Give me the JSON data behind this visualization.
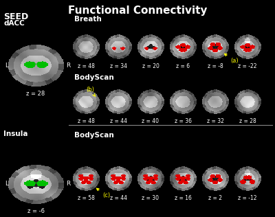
{
  "title": "Functional Connectivity",
  "title_fontsize": 11,
  "bg_color": "#000000",
  "seed_label": "SEED",
  "dacc_label": "dACC",
  "dacc_z_label": "z = 28",
  "insula_label": "Insula",
  "insula_z_label": "z = -6",
  "breath_label": "Breath",
  "bodyscan_label1": "BodyScan",
  "bodyscan_label2": "BodyScan",
  "L_label": "L",
  "R_label": "R",
  "row1_z_labels": [
    "z = 48",
    "z = 34",
    "z = 20",
    "z = 6",
    "z = -8",
    "z = -22"
  ],
  "row2_z_labels": [
    "z = 48",
    "z = 44",
    "z = 40",
    "z = 36",
    "z = 32",
    "z = 28"
  ],
  "row3_z_labels": [
    "z = 58",
    "z = 44",
    "z = 30",
    "z = 16",
    "z = 2",
    "z = -12"
  ],
  "annotation_a": "(a)",
  "annotation_b": "(b)",
  "annotation_c": "(c)",
  "annotation_color": "#ffff00",
  "red_color": "#ff0000",
  "green_color": "#00bb00",
  "white_color": "#ffffff",
  "gray_color": "#aaaaaa",
  "separator_color": "#888888"
}
